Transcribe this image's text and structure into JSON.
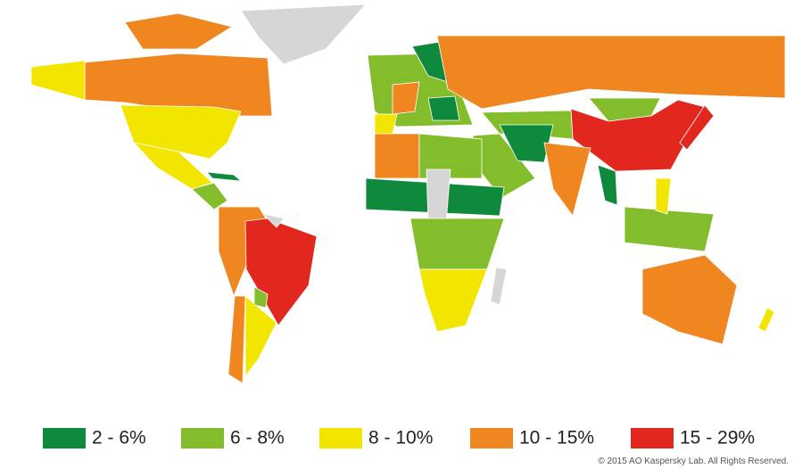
{
  "legend": {
    "items": [
      {
        "label": "2 - 6%",
        "color": "#0f8a3c"
      },
      {
        "label": "6 - 8%",
        "color": "#84bd2b"
      },
      {
        "label": "8 - 10%",
        "color": "#f2e600"
      },
      {
        "label": "10 - 15%",
        "color": "#ef8620"
      },
      {
        "label": "15 - 29%",
        "color": "#e2271f"
      }
    ]
  },
  "copyright": "© 2015 AO Kaspersky Lab. All Rights Reserved."
}
